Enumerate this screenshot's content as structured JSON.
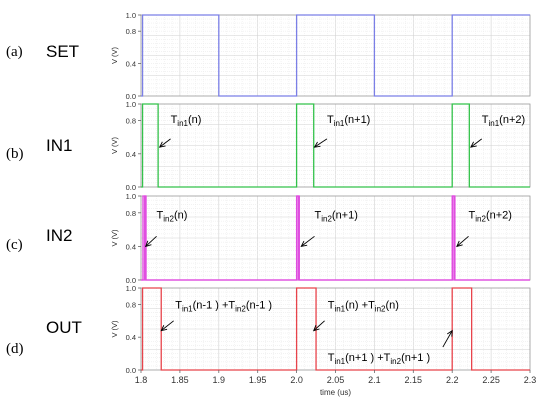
{
  "chart_data": [
    {
      "type": "line",
      "panel_label": "(a)",
      "signal_name": "SET",
      "ylabel": "V (V)",
      "ylim": [
        0,
        1.0
      ],
      "yticks": [
        "0.0",
        "0.4",
        "0.8",
        "1.0"
      ],
      "xlim": [
        1.8,
        2.3
      ],
      "color": "#7b7fe6",
      "series": [
        {
          "x": [
            1.8,
            1.802,
            1.802,
            1.9,
            1.9,
            2.0,
            2.0,
            2.1,
            2.1,
            2.2,
            2.2,
            2.3
          ],
          "y": [
            0.0,
            0.0,
            1.0,
            1.0,
            0.0,
            0.0,
            1.0,
            1.0,
            0.0,
            0.0,
            1.0,
            1.0
          ]
        }
      ],
      "annotations": []
    },
    {
      "type": "line",
      "panel_label": "(b)",
      "signal_name": "IN1",
      "ylabel": "V (V)",
      "ylim": [
        0,
        1.0
      ],
      "yticks": [
        "0.0",
        "0.4",
        "0.8",
        "1.0"
      ],
      "xlim": [
        1.8,
        2.3
      ],
      "color": "#33c24a",
      "series": [
        {
          "x": [
            1.8,
            1.802,
            1.802,
            1.822,
            1.822,
            2.0,
            2.0,
            2.022,
            2.022,
            2.2,
            2.2,
            2.222,
            2.222,
            2.3
          ],
          "y": [
            0.0,
            0.0,
            1.0,
            1.0,
            0.0,
            0.0,
            1.0,
            1.0,
            0.0,
            0.0,
            1.0,
            1.0,
            0.0,
            0.0
          ]
        }
      ],
      "annotations": [
        {
          "main": "T",
          "sub": "in1",
          "rest": "(n)",
          "x": 1.838,
          "y": 0.82,
          "ax": 1.838,
          "ay": 0.58,
          "tx": 1.824,
          "ty": 0.48
        },
        {
          "main": "T",
          "sub": "in1",
          "rest": "(n+1)",
          "x": 2.039,
          "y": 0.82,
          "ax": 2.039,
          "ay": 0.58,
          "tx": 2.023,
          "ty": 0.48
        },
        {
          "main": "T",
          "sub": "in1",
          "rest": "(n+2)",
          "x": 2.238,
          "y": 0.82,
          "ax": 2.238,
          "ay": 0.58,
          "tx": 2.224,
          "ty": 0.48
        }
      ]
    },
    {
      "type": "line",
      "panel_label": "(c)",
      "signal_name": "IN2",
      "ylabel": "V (V)",
      "ylim": [
        0,
        1.0
      ],
      "yticks": [
        "0.0",
        "0.4",
        "0.8",
        "1.0"
      ],
      "xlim": [
        1.8,
        2.3
      ],
      "color": "#e04ee0",
      "series": [
        {
          "x": [
            1.8,
            1.8025,
            1.8025,
            1.8055,
            1.8055,
            2.0,
            2.0,
            2.0035,
            2.0035,
            2.2,
            2.2,
            2.2035,
            2.2035,
            2.3
          ],
          "y": [
            0.0,
            0.0,
            1.0,
            1.0,
            0.0,
            0.0,
            1.0,
            1.0,
            0.0,
            0.0,
            1.0,
            1.0,
            0.0,
            0.0
          ]
        },
        {
          "x": [
            1.8,
            1.8045,
            1.8045,
            1.8065,
            1.8065,
            2.0005,
            2.0005,
            2.0025,
            2.0025,
            2.2005,
            2.2005,
            2.2025,
            2.2025,
            2.3
          ],
          "y": [
            0.0,
            0.0,
            1.0,
            1.0,
            0.0,
            0.0,
            1.0,
            1.0,
            0.0,
            0.0,
            1.0,
            1.0,
            0.0,
            0.0
          ]
        }
      ],
      "annotations": [
        {
          "main": "T",
          "sub": "in2",
          "rest": "(n)",
          "x": 1.82,
          "y": 0.78,
          "ax": 1.82,
          "ay": 0.52,
          "tx": 1.806,
          "ty": 0.4
        },
        {
          "main": "T",
          "sub": "in2",
          "rest": "(n+1)",
          "x": 2.023,
          "y": 0.78,
          "ax": 2.023,
          "ay": 0.52,
          "tx": 2.006,
          "ty": 0.4
        },
        {
          "main": "T",
          "sub": "in2",
          "rest": "(n+2)",
          "x": 2.221,
          "y": 0.78,
          "ax": 2.221,
          "ay": 0.52,
          "tx": 2.206,
          "ty": 0.4
        }
      ]
    },
    {
      "type": "line",
      "panel_label": "(d)",
      "signal_name": "OUT",
      "ylabel": "V (V)",
      "ylim": [
        0,
        1.0
      ],
      "yticks": [
        "0.0",
        "0.4",
        "0.8",
        "1.0"
      ],
      "xlim": [
        1.8,
        2.3
      ],
      "xlabel": "time (us)",
      "xticks": [
        "1.8",
        "1.85",
        "1.9",
        "1.95",
        "2.0",
        "2.05",
        "2.1",
        "2.15",
        "2.2",
        "2.25",
        "2.3"
      ],
      "color": "#e8434b",
      "series": [
        {
          "x": [
            1.8,
            1.802,
            1.802,
            1.826,
            1.826,
            2.0,
            2.0,
            2.025,
            2.025,
            2.2,
            2.2,
            2.225,
            2.225,
            2.3
          ],
          "y": [
            0.0,
            0.0,
            1.0,
            1.0,
            0.0,
            0.0,
            1.0,
            1.0,
            0.0,
            0.0,
            1.0,
            1.0,
            0.0,
            0.0
          ]
        }
      ],
      "annotations": [
        {
          "main": "T",
          "sub": "in1",
          "rest": "(n-1 ) +T",
          "sub2": "in2",
          "rest2": "(n-1 )",
          "x": 1.844,
          "y": 0.8,
          "ax": 1.842,
          "ay": 0.6,
          "tx": 1.826,
          "ty": 0.48
        },
        {
          "main": "T",
          "sub": "in1",
          "rest": "(n) +T",
          "sub2": "in2",
          "rest2": "(n)",
          "x": 2.04,
          "y": 0.8,
          "ax": 2.036,
          "ay": 0.6,
          "tx": 2.022,
          "ty": 0.48
        },
        {
          "main": "T",
          "sub": "in1",
          "rest": "(n+1 ) +T",
          "sub2": "in2",
          "rest2": "(n+1 )",
          "x": 2.04,
          "y": 0.16,
          "ax": 2.188,
          "ay": 0.28,
          "tx": 2.2,
          "ty": 0.48
        }
      ]
    }
  ]
}
